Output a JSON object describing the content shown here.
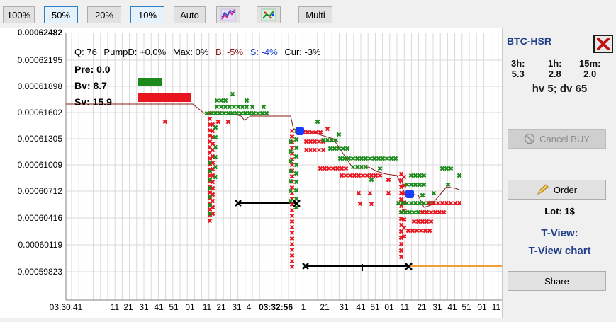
{
  "toolbar": {
    "buttons": [
      {
        "label": "100%",
        "selected": false
      },
      {
        "label": "50%",
        "selected": true
      },
      {
        "label": "20%",
        "selected": false
      },
      {
        "label": "10%",
        "selected": true
      },
      {
        "label": "Auto",
        "selected": false
      }
    ],
    "icon_buttons": [
      "line-chart-icon",
      "scatter-chart-icon"
    ],
    "multi_label": "Multi"
  },
  "chart": {
    "top_price": "0.00062482",
    "price_ticks": [
      "0.00062195",
      "0.00061898",
      "0.00061602",
      "0.00061305",
      "0.00061009",
      "0.00060712",
      "0.00060416",
      "0.00060119",
      "0.00059823"
    ],
    "time_labels": [
      "03:30:41",
      "11",
      "21",
      "31",
      "41",
      "51",
      "01",
      "11",
      "21",
      "31",
      "4",
      "03:32:56",
      "1",
      "21",
      "31",
      "41",
      "51",
      "01",
      "11",
      "21",
      "31",
      "41",
      "51",
      "01",
      "11"
    ],
    "info_line": {
      "q": "Q: 76",
      "pumpd": "PumpD: +0.0%",
      "max": "Max: 0%",
      "b": "B: -5%",
      "s": "S: -4%",
      "cur": "Cur: -3%"
    },
    "pre": "Pre: 0.0",
    "bv": "Bv: 8.7",
    "sv": "Sv: 15.9",
    "colors": {
      "buy": "#1a8a1a",
      "sell": "#e8141e",
      "marker": "#1a3cff",
      "line": "#8b1a1a",
      "orange": "#f0a030"
    }
  },
  "side": {
    "pair": "BTC-HSR",
    "timeframes": [
      {
        "label": "3h:",
        "value": "5.3"
      },
      {
        "label": "1h:",
        "value": "2.8"
      },
      {
        "label": "15m:",
        "value": "2.0"
      }
    ],
    "hvdv": "hv 5; dv 65",
    "cancel_label": "Cancel BUY",
    "order_label": "Order",
    "lot": "Lot: 1$",
    "tview": "T-View:",
    "tview_chart": "T-View chart",
    "share_label": "Share"
  }
}
